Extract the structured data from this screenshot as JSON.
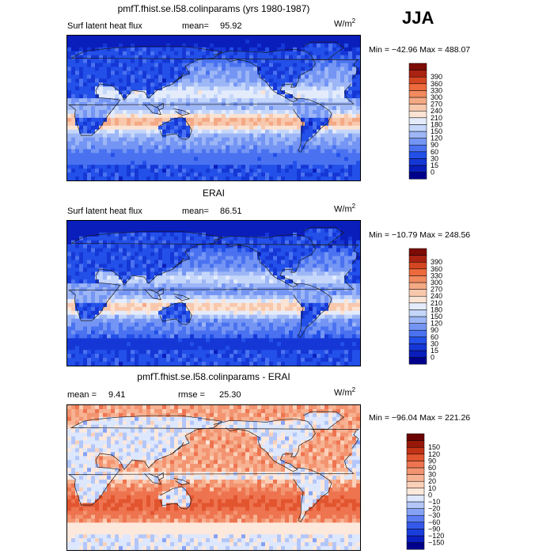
{
  "season": "JJA",
  "units": {
    "base": "W/m",
    "exp": "2"
  },
  "colors": {
    "abs_scale": [
      "#00008b",
      "#0a1ebc",
      "#1537d6",
      "#2350e8",
      "#4a72f0",
      "#7495f3",
      "#9db6f6",
      "#c4d6fa",
      "#e4ecfc",
      "#fbe3d3",
      "#f8c8ad",
      "#f4a985",
      "#f18a5f",
      "#ec6a3c",
      "#d44622",
      "#aa2212",
      "#7d0c06"
    ],
    "diff_scale": [
      "#00008b",
      "#0b1fc1",
      "#1a3ede",
      "#3459ea",
      "#5c7df2",
      "#86a2f5",
      "#b2c6f9",
      "#dde7fd",
      "#fde8dc",
      "#fbd0b9",
      "#f6b292",
      "#f39470",
      "#ee7450",
      "#e2552f",
      "#c23316",
      "#971809",
      "#6b0402"
    ],
    "land_outline": "#1a1a1a"
  },
  "chart_data": [
    {
      "type": "heatmap",
      "title": "pmfT.fhist.se.l58.colinparams (yrs 1980-1987)",
      "variable": "Surf latent heat flux",
      "stat_label": "mean=",
      "stat_value": "95.92",
      "min_max": "Min = −42.96 Max = 488.07",
      "min": -42.96,
      "max": 488.07,
      "colorbar_levels": [
        "0",
        "15",
        "30",
        "60",
        "90",
        "120",
        "150",
        "180",
        "210",
        "240",
        "270",
        "300",
        "330",
        "360",
        "390"
      ],
      "field": "model"
    },
    {
      "type": "heatmap",
      "title": "ERAI",
      "variable": "Surf latent heat flux",
      "stat_label": "mean=",
      "stat_value": "86.51",
      "min_max": "Min = −10.79 Max = 248.56",
      "min": -10.79,
      "max": 248.56,
      "colorbar_levels": [
        "0",
        "15",
        "30",
        "60",
        "90",
        "120",
        "150",
        "180",
        "210",
        "240",
        "270",
        "300",
        "330",
        "360",
        "390"
      ],
      "field": "obs"
    },
    {
      "type": "heatmap",
      "title": "pmfT.fhist.se.l58.colinparams - ERAI",
      "mean_label": "mean =",
      "mean_value": "9.41",
      "rmse_label": "rmse =",
      "rmse_value": "25.30",
      "min_max": "Min = −96.04 Max = 221.26",
      "min": -96.04,
      "max": 221.26,
      "colorbar_levels": [
        "−150",
        "−120",
        "−90",
        "−60",
        "−30",
        "−20",
        "−10",
        "0",
        "10",
        "20",
        "30",
        "60",
        "90",
        "120",
        "150"
      ],
      "field": "diff"
    }
  ]
}
